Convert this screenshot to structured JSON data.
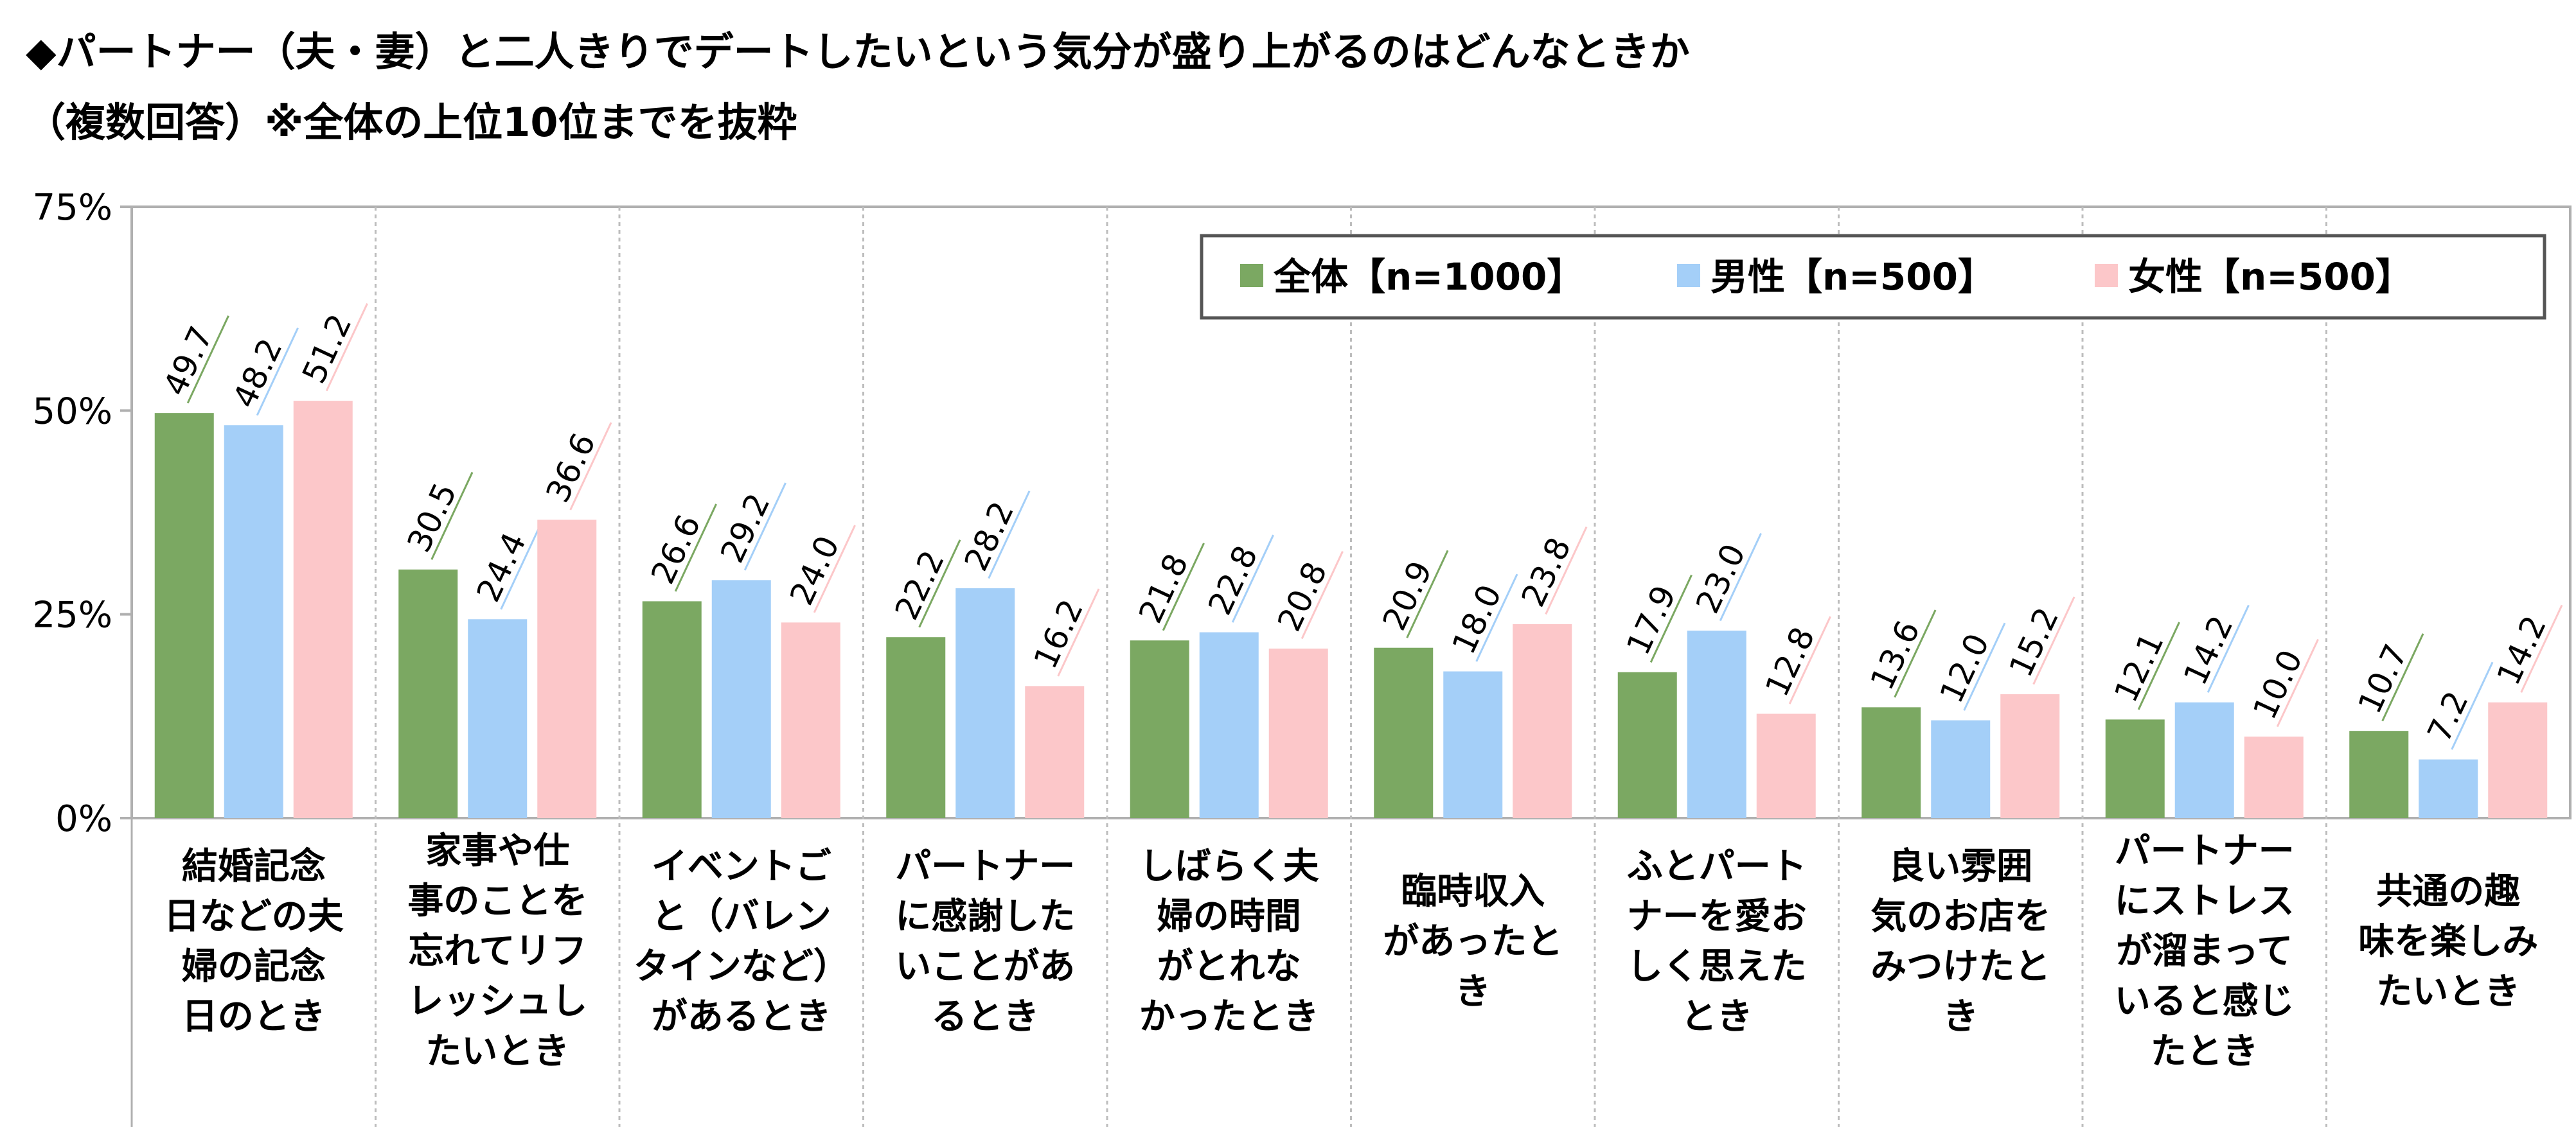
{
  "title": {
    "line1": "◆パートナー（夫・妻）と二人きりでデートしたいという気分が盛り上がるのはどんなときか",
    "line2": "（複数回答）※全体の上位10位までを抜粋"
  },
  "colors": {
    "series": [
      "#7ba862",
      "#a4cff8",
      "#fcc7c9"
    ],
    "axis": "#b0b0b0",
    "grid": "#bdbdbd",
    "legend_border": "#555555"
  },
  "chart_data": {
    "type": "bar",
    "ylim": [
      0,
      75
    ],
    "yticks": [
      0,
      25,
      50,
      75
    ],
    "ytick_labels": [
      "0%",
      "25%",
      "50%",
      "75%"
    ],
    "legend_position": "top-right",
    "categories": [
      [
        "結婚記念",
        "日などの夫",
        "婦の記念",
        "日のとき"
      ],
      [
        "家事や仕",
        "事のことを",
        "忘れてリフ",
        "レッシュし",
        "たいとき"
      ],
      [
        "イベントご",
        "と（バレン",
        "タインなど）",
        "があるとき"
      ],
      [
        "パートナー",
        "に感謝した",
        "いことがあ",
        "るとき"
      ],
      [
        "しばらく夫",
        "婦の時間",
        "がとれな",
        "かったとき"
      ],
      [
        "臨時収入",
        "があったと",
        "き"
      ],
      [
        "ふとパート",
        "ナーを愛お",
        "しく思えた",
        "とき"
      ],
      [
        "良い雰囲",
        "気のお店を",
        "みつけたと",
        "き"
      ],
      [
        "パートナー",
        "にストレス",
        "が溜まって",
        "いると感じ",
        "たとき"
      ],
      [
        "共通の趣",
        "味を楽しみ",
        "たいとき"
      ]
    ],
    "series": [
      {
        "name": "全体【n=1000】",
        "values": [
          49.7,
          30.5,
          26.6,
          22.2,
          21.8,
          20.9,
          17.9,
          13.6,
          12.1,
          10.7
        ],
        "labels": [
          "49.7",
          "30.5",
          "26.6",
          "22.2",
          "21.8",
          "20.9",
          "17.9",
          "13.6",
          "12.1",
          "10.7"
        ]
      },
      {
        "name": "男性【n=500】",
        "values": [
          48.2,
          24.4,
          29.2,
          28.2,
          22.8,
          18.0,
          23.0,
          12.0,
          14.2,
          7.2
        ],
        "labels": [
          "48.2",
          "24.4",
          "29.2",
          "28.2",
          "22.8",
          "18.0",
          "23.0",
          "12.0",
          "14.2",
          "7.2"
        ]
      },
      {
        "name": "女性【n=500】",
        "values": [
          51.2,
          36.6,
          24.0,
          16.2,
          20.8,
          23.8,
          12.8,
          15.2,
          10.0,
          14.2
        ],
        "labels": [
          "51.2",
          "36.6",
          "24.0",
          "16.2",
          "20.8",
          "23.8",
          "12.8",
          "15.2",
          "10.0",
          "14.2"
        ]
      }
    ]
  }
}
